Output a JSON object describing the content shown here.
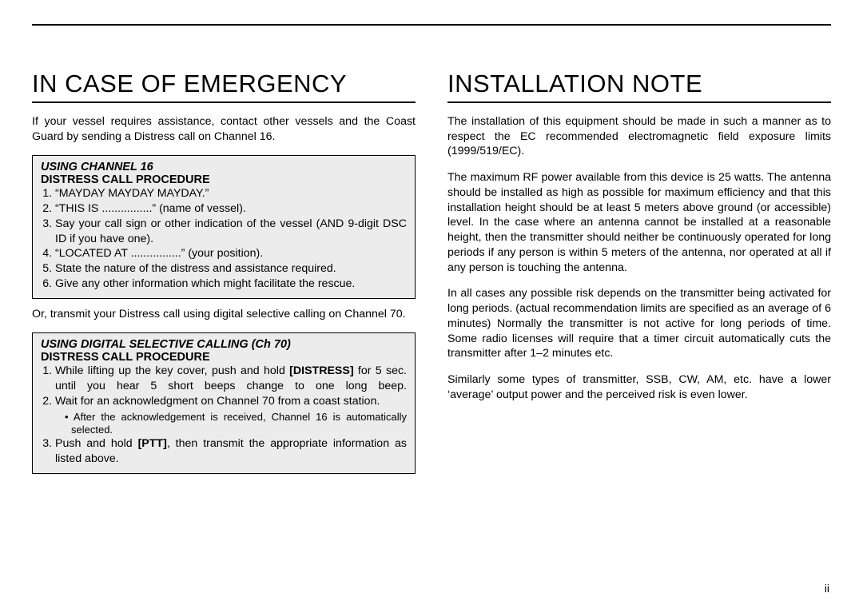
{
  "left": {
    "heading": "IN CASE OF EMERGENCY",
    "intro": "If your vessel requires assistance, contact other vessels and the Coast Guard by sending a Distress call on Channel 16.",
    "box1": {
      "title1": "USING CHANNEL 16",
      "title2": "DISTRESS CALL PROCEDURE",
      "item1": "“MAYDAY MAYDAY MAYDAY.”",
      "item2": "“THIS IS ................” (name of vessel).",
      "item3": "Say your call sign or other indication of the vessel (AND 9-digit DSC ID if you have one).",
      "item4": "“LOCATED AT ................” (your position).",
      "item5": "State the nature of the distress and assistance required.",
      "item6": "Give any other information which might facilitate the rescue."
    },
    "mid": "Or, transmit your Distress call using digital selective calling on Channel 70.",
    "box2": {
      "title1": "USING DIGITAL SELECTIVE CALLING (Ch 70)",
      "title2": "DISTRESS CALL PROCEDURE",
      "item1_a": "While lifting up the key cover, push and hold ",
      "item1_b": "[DISTRESS]",
      "item1_c": " for 5 sec. until you hear 5 short beeps change to one long beep.",
      "item2": "Wait for an acknowledgment on Channel 70 from a coast station.",
      "item2_sub": "After the acknowledgement is received, Channel 16 is automatically selected.",
      "item3_a": "Push and hold ",
      "item3_b": "[PTT]",
      "item3_c": ", then transmit the appropriate information as listed above."
    }
  },
  "right": {
    "heading": "INSTALLATION NOTE",
    "p1": "The installation of this equipment should be made in such a manner as to respect the EC recommended electromagnetic field exposure limits (1999/519/EC).",
    "p2": "The maximum RF power available from this device is 25 watts. The antenna should be installed as high as possible for maximum efficiency and that this installation height should be at least 5 meters above ground (or accessible) level. In the case where an antenna cannot be installed at a reasonable height, then the transmitter should neither be continuously operated for long periods if any person is within 5 meters of the antenna, nor operated at all if any person is touching the antenna.",
    "p3": "In all cases any possible risk depends on the transmitter being activated for long periods. (actual recommendation limits are specified as an average of 6 minutes) Normally the transmitter is not active for long periods of time. Some radio licenses will require that a timer circuit automatically cuts the transmitter after 1–2 minutes etc.",
    "p4": "Similarly some types of transmitter, SSB, CW, AM, etc. have a lower ‘average’ output power and the perceived risk is even lower."
  },
  "page_num": "ii"
}
